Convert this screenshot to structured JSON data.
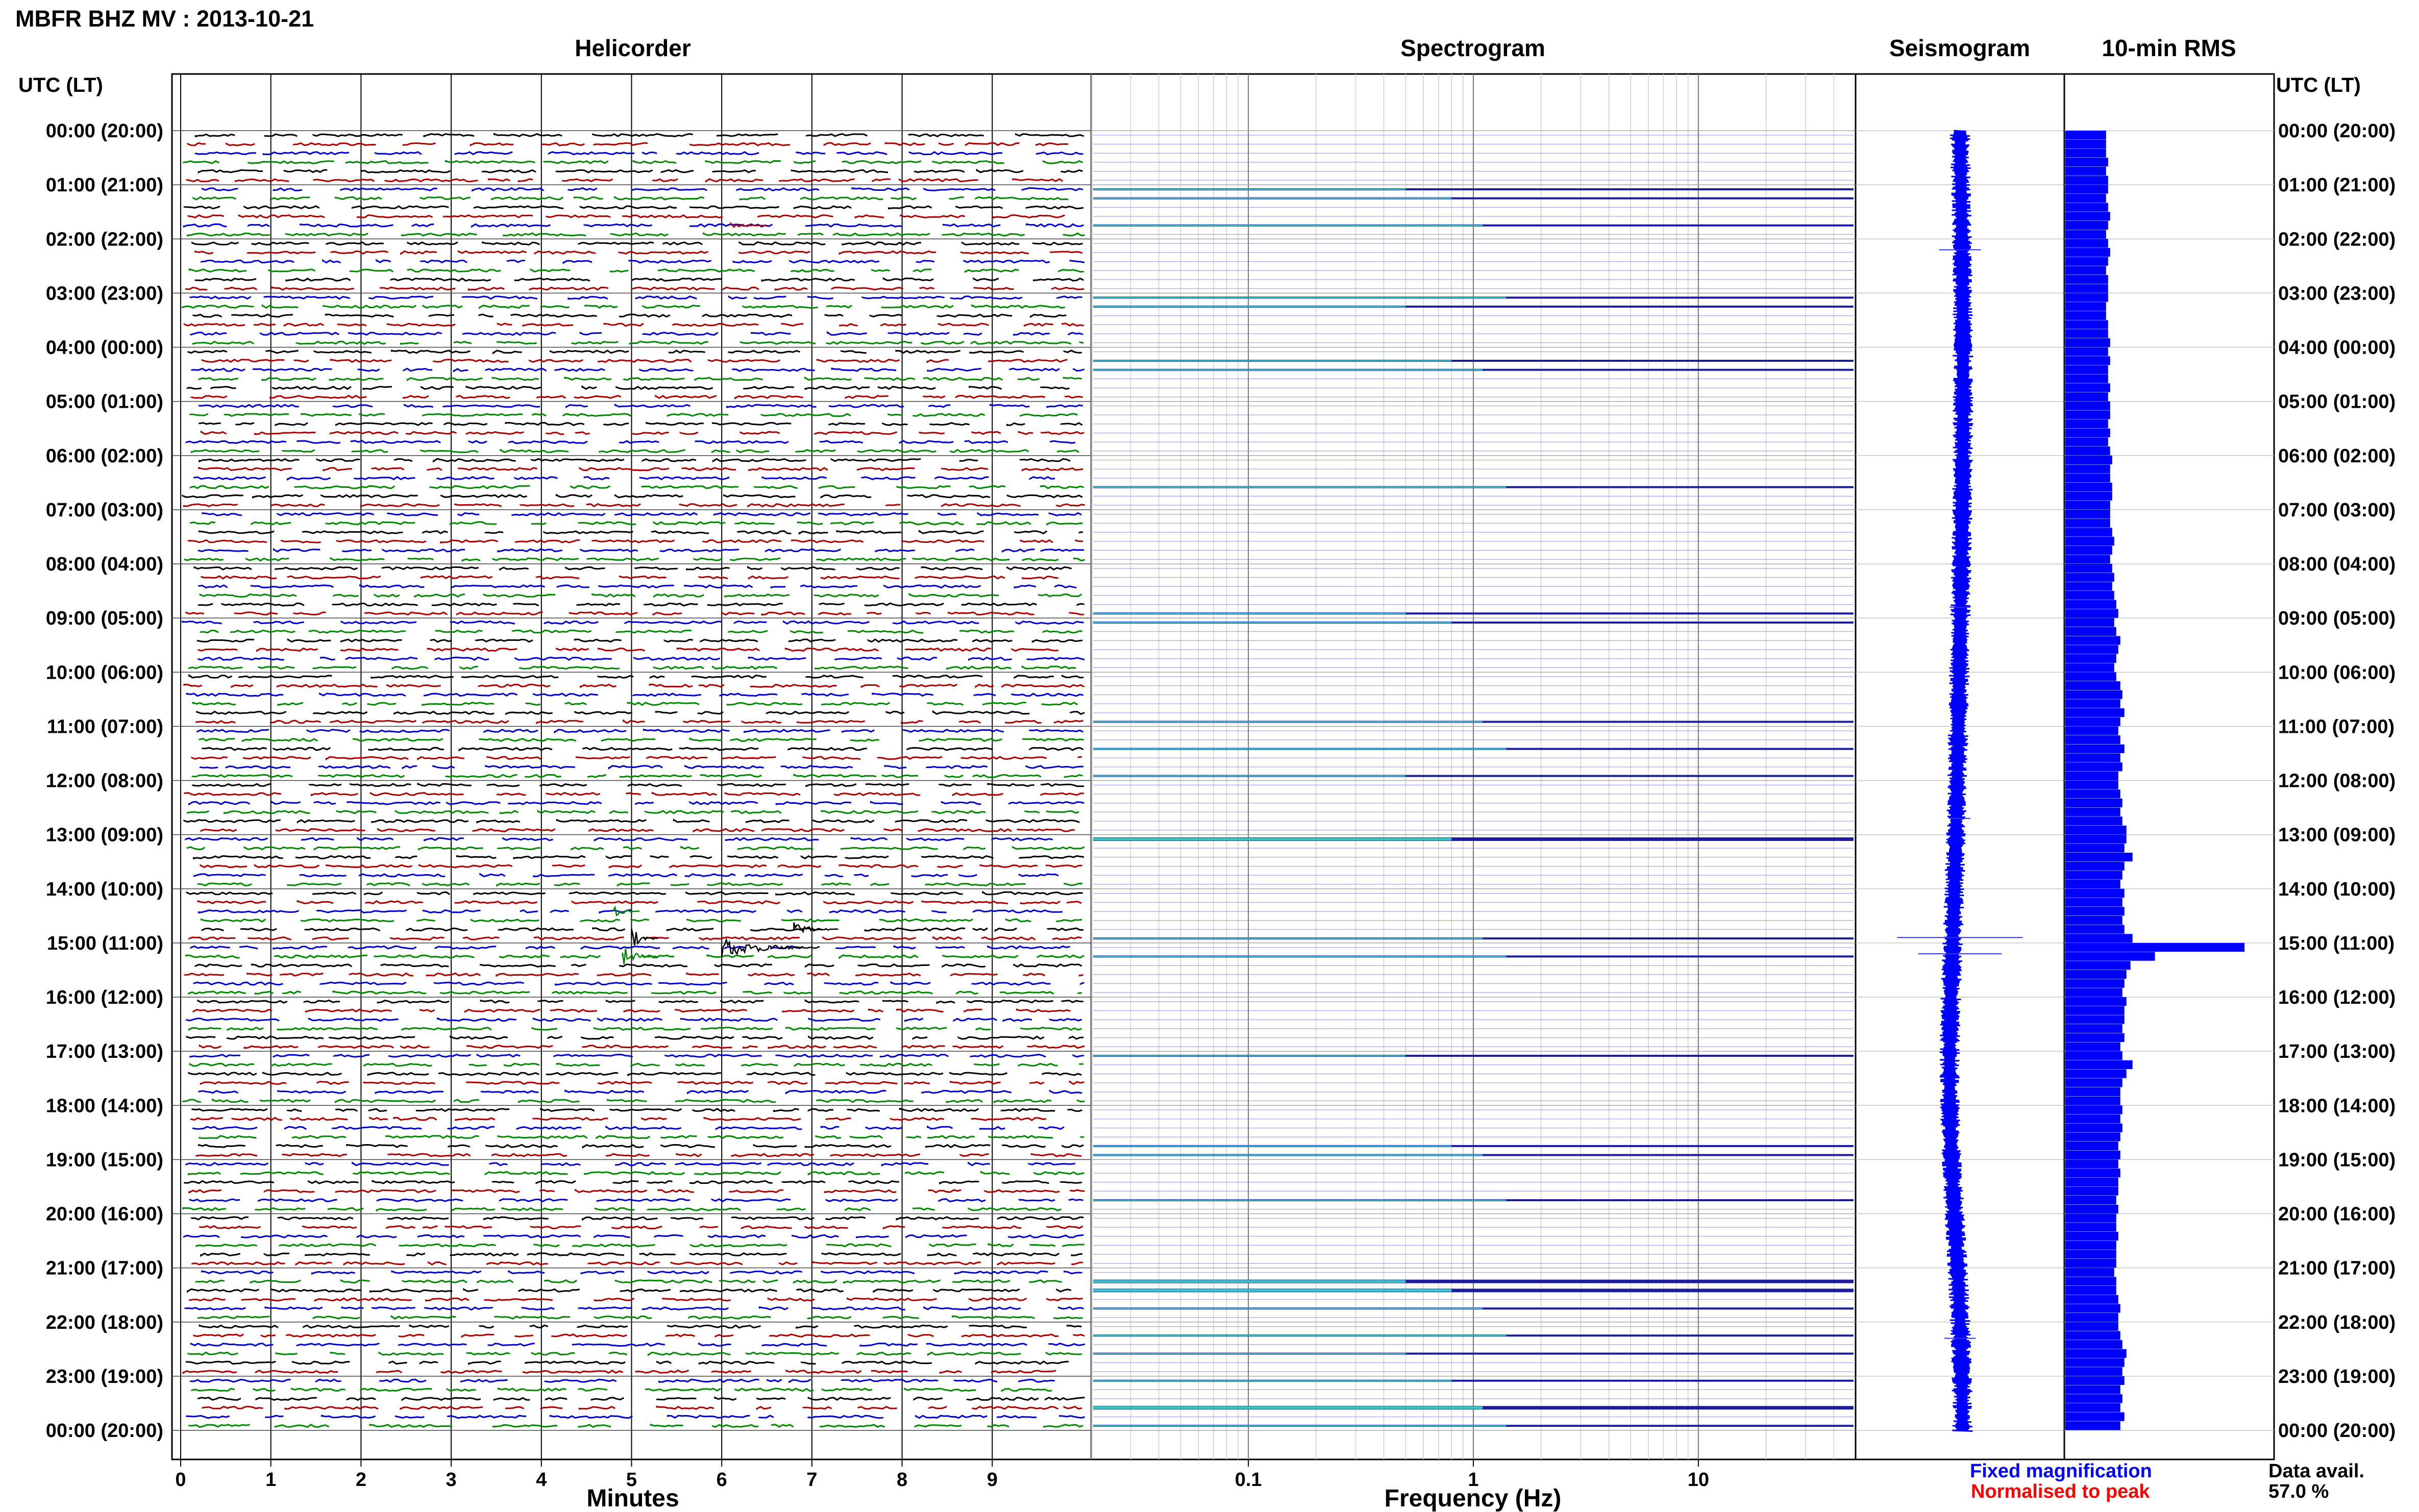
{
  "title": "MBFR BHZ MV : 2013-10-21",
  "panels": {
    "helicorder": "Helicorder",
    "spectrogram": "Spectrogram",
    "seismogram": "Seismogram",
    "rms": "10-min RMS"
  },
  "time_axis_header": "UTC (LT)",
  "x_labels": {
    "helicorder": "Minutes",
    "spectrogram": "Frequency (Hz)"
  },
  "legend": {
    "fixed": "Fixed magnification",
    "normalised": "Normalised to peak",
    "fixed_color": "#0000ff",
    "normalised_color": "#ff0000"
  },
  "data_avail": {
    "label": "Data avail.",
    "value": "57.0 %"
  },
  "colors": {
    "trace_cycle": [
      "#000000",
      "#aa0000",
      "#0000cc",
      "#008800"
    ],
    "rms_bar": "#0000ff",
    "spectro_base": "#1c1c9c",
    "spectro_hot": "#40e0d0"
  },
  "chart_data": {
    "type": "heatmap",
    "hour_labels": [
      "00:00 (20:00)",
      "01:00 (21:00)",
      "02:00 (22:00)",
      "03:00 (23:00)",
      "04:00 (00:00)",
      "05:00 (01:00)",
      "06:00 (02:00)",
      "07:00 (03:00)",
      "08:00 (04:00)",
      "09:00 (05:00)",
      "10:00 (06:00)",
      "11:00 (07:00)",
      "12:00 (08:00)",
      "13:00 (09:00)",
      "14:00 (10:00)",
      "15:00 (11:00)",
      "16:00 (12:00)",
      "17:00 (13:00)",
      "18:00 (14:00)",
      "19:00 (15:00)",
      "20:00 (16:00)",
      "21:00 (17:00)",
      "22:00 (18:00)",
      "23:00 (19:00)",
      "00:00 (20:00)"
    ],
    "helicorder": {
      "minute_ticks": [
        "0",
        "1",
        "2",
        "3",
        "4",
        "5",
        "6",
        "7",
        "8",
        "9"
      ],
      "xlim": [
        0,
        10
      ],
      "rows_per_hour": 6,
      "events": [
        {
          "row": 10,
          "minute": 6.1,
          "width_min": 0.4,
          "amp": 0.2
        },
        {
          "row": 88,
          "minute": 6.8,
          "width_min": 0.5,
          "amp": 0.6
        },
        {
          "row": 86,
          "minute": 4.8,
          "width_min": 0.3,
          "amp": 0.5
        },
        {
          "row": 89,
          "minute": 5.0,
          "width_min": 0.3,
          "amp": 0.9
        },
        {
          "row": 90,
          "minute": 6.0,
          "width_min": 1.1,
          "amp": 1.0
        },
        {
          "row": 91,
          "minute": 4.9,
          "width_min": 0.4,
          "amp": 0.9
        }
      ]
    },
    "spectrogram": {
      "xscale": "log",
      "xlim": [
        0.02,
        50
      ],
      "ticks": [
        "0.1",
        "1",
        "10"
      ],
      "tick_values": [
        0.1,
        1,
        10
      ],
      "strong_rows": [
        6,
        7,
        10,
        18,
        19,
        25,
        26,
        39,
        53,
        54,
        65,
        68,
        71,
        78,
        89,
        91,
        102,
        112,
        113,
        118,
        127,
        128,
        130,
        133,
        135,
        138,
        141,
        143
      ]
    },
    "seismogram": {
      "spikes": [
        {
          "hour": 2.2,
          "amp": 0.2
        },
        {
          "hour": 8.8,
          "amp": 0.1
        },
        {
          "hour": 12.7,
          "amp": 0.1
        },
        {
          "hour": 14.9,
          "amp": 0.6
        },
        {
          "hour": 15.2,
          "amp": 0.4
        },
        {
          "hour": 22.3,
          "amp": 0.15
        }
      ]
    },
    "rms": {
      "note_units": "relative",
      "values": [
        20,
        20,
        20,
        21,
        20,
        21,
        21,
        20,
        21,
        22,
        21,
        20,
        21,
        22,
        21,
        20,
        21,
        21,
        21,
        20,
        20,
        21,
        21,
        22,
        21,
        22,
        21,
        21,
        22,
        21,
        22,
        22,
        21,
        22,
        21,
        22,
        23,
        22,
        22,
        23,
        23,
        22,
        22,
        22,
        23,
        24,
        23,
        22,
        23,
        24,
        23,
        24,
        25,
        26,
        24,
        25,
        27,
        26,
        25,
        24,
        25,
        27,
        28,
        27,
        29,
        27,
        26,
        27,
        29,
        27,
        28,
        26,
        26,
        27,
        28,
        27,
        28,
        30,
        30,
        29,
        33,
        29,
        28,
        27,
        29,
        28,
        29,
        28,
        29,
        33,
        88,
        44,
        32,
        30,
        29,
        28,
        30,
        29,
        29,
        28,
        29,
        27,
        28,
        33,
        30,
        28,
        27,
        27,
        28,
        27,
        28,
        27,
        26,
        27,
        26,
        27,
        26,
        26,
        25,
        26,
        25,
        25,
        26,
        25,
        25,
        25,
        24,
        25,
        25,
        26,
        27,
        26,
        26,
        27,
        28,
        30,
        29,
        28,
        29,
        27,
        28,
        27,
        29,
        27
      ]
    }
  }
}
